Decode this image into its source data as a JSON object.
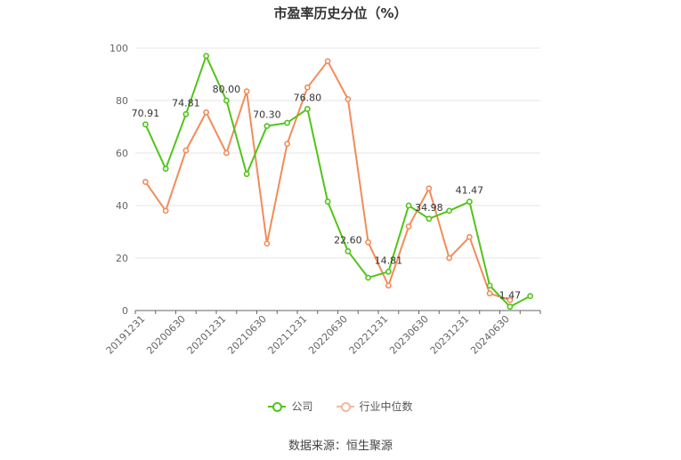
{
  "title": "市盈率历史分位（%）",
  "source": "数据来源：恒生聚源",
  "chart_data": {
    "type": "line",
    "categories": [
      "20191231",
      "",
      "20200630",
      "",
      "20201231",
      "",
      "20210630",
      "",
      "20211231",
      "",
      "20220630",
      "",
      "20221231",
      "",
      "20230630",
      "",
      "20231231",
      "",
      "20240630",
      ""
    ],
    "ylim": [
      0,
      100
    ],
    "yticks": [
      0,
      20,
      40,
      60,
      80,
      100
    ],
    "grid": true,
    "legend_position": "bottom",
    "series": [
      {
        "name": "公司",
        "color": "#52c41a",
        "values": [
          70.91,
          54,
          74.81,
          97,
          80.0,
          52,
          70.3,
          71.5,
          76.8,
          41.5,
          22.6,
          12.5,
          14.81,
          40,
          34.98,
          38,
          41.47,
          9.5,
          1.47,
          5.5
        ],
        "labels": [
          "70.91",
          "",
          "74.81",
          "",
          "80.00",
          "",
          "70.30",
          "",
          "76.80",
          "",
          "22.60",
          "",
          "14.81",
          "",
          "34.98",
          "",
          "41.47",
          "",
          "1.47",
          ""
        ]
      },
      {
        "name": "行业中位数",
        "color": "#f28c5a",
        "values": [
          49,
          38,
          61,
          75.5,
          60,
          83.5,
          25.5,
          63.5,
          85,
          95,
          80.5,
          26,
          9.5,
          32,
          46.5,
          20,
          28,
          6.5,
          4,
          null
        ],
        "labels": []
      }
    ]
  }
}
